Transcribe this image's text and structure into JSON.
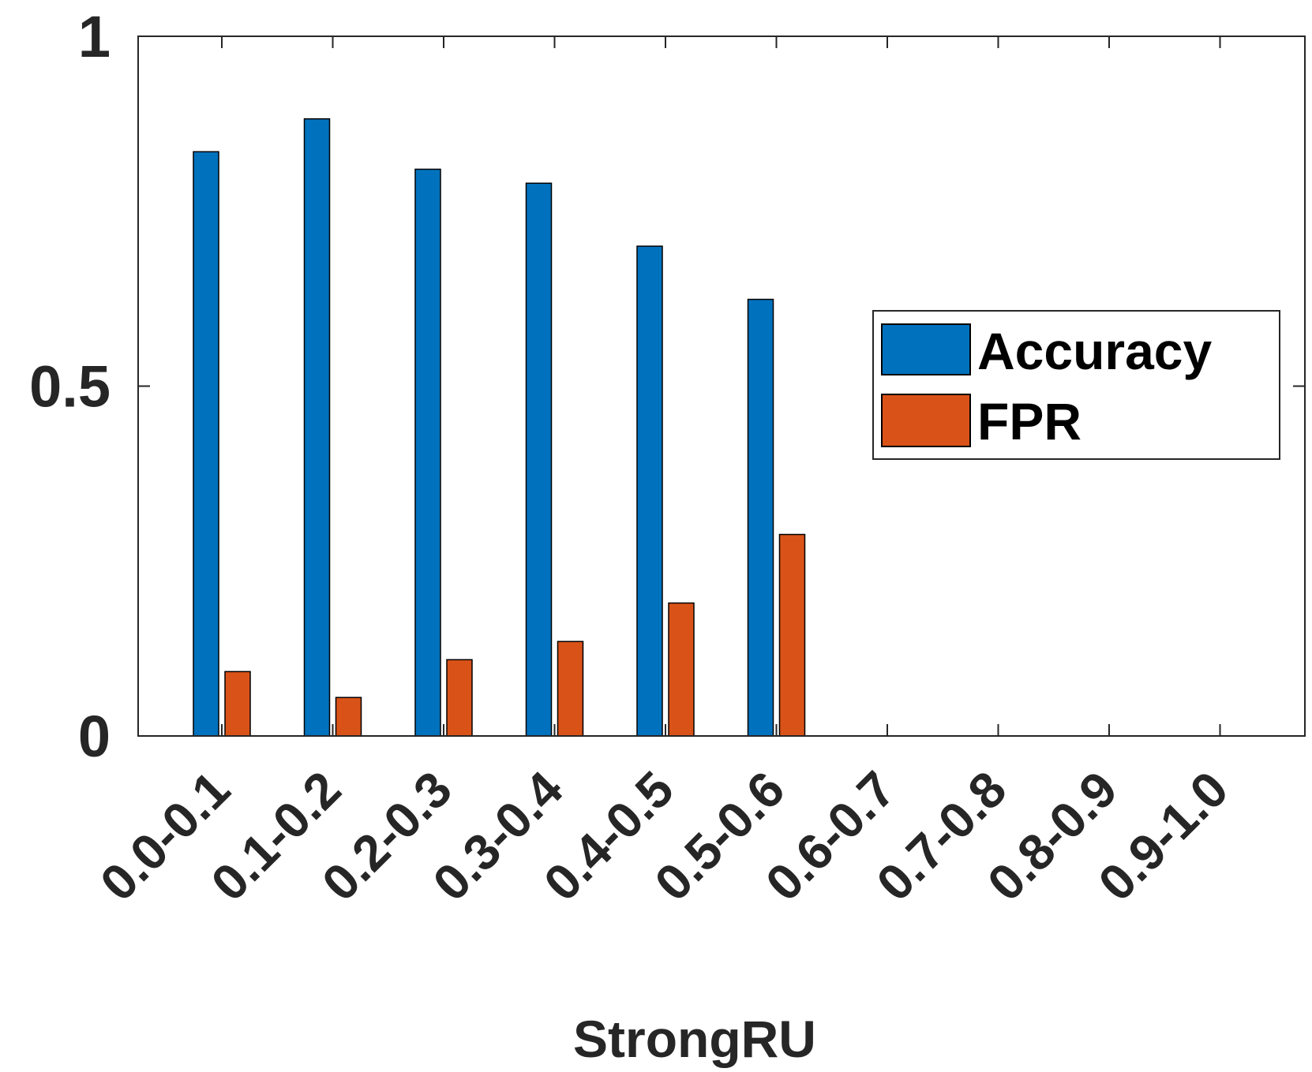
{
  "chart_data": {
    "type": "bar",
    "xlabel": "StrongRU",
    "ylabel": "",
    "ylim": [
      0,
      1
    ],
    "yticks": [
      0,
      0.5,
      1
    ],
    "ytick_labels": [
      "0",
      "0.5",
      "1"
    ],
    "categories": [
      "0.0-0.1",
      "0.1-0.2",
      "0.2-0.3",
      "0.3-0.4",
      "0.4-0.5",
      "0.5-0.6",
      "0.6-0.7",
      "0.7-0.8",
      "0.8-0.9",
      "0.9-1.0"
    ],
    "series": [
      {
        "name": "Accuracy",
        "color": "#0072BD",
        "values": [
          0.835,
          0.882,
          0.81,
          0.79,
          0.7,
          0.624,
          null,
          null,
          null,
          null
        ]
      },
      {
        "name": "FPR",
        "color": "#D95319",
        "values": [
          0.092,
          0.055,
          0.109,
          0.135,
          0.19,
          0.288,
          null,
          null,
          null,
          null
        ]
      }
    ],
    "legend_position": "right",
    "grid": false,
    "box": true
  }
}
